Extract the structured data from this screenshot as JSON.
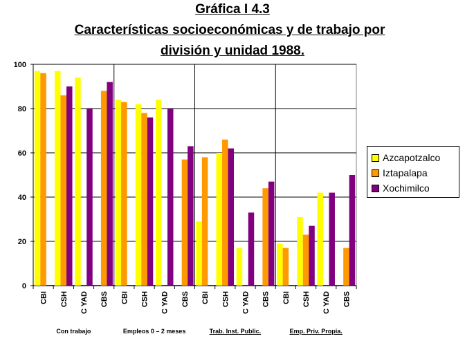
{
  "title": {
    "line1": "Gráfica I 4.3",
    "line2": "Características socioeconómicas y de trabajo por",
    "line3": "división y unidad 1988."
  },
  "colors": {
    "Azcapotzalco": "#ffff00",
    "Iztapalapa": "#ff9900",
    "Xochimilco": "#800080",
    "grid": "#000000",
    "plot_border": "#808080"
  },
  "chart_data": {
    "type": "bar",
    "ylim": [
      0,
      100
    ],
    "yticks": [
      0,
      20,
      40,
      60,
      80,
      100
    ],
    "grid": "horizontal",
    "legend_position": "right",
    "groups": [
      {
        "label": "Con trabajo",
        "categories": [
          "CBI",
          "CSH",
          "CYAD",
          "CBS"
        ]
      },
      {
        "label": "Empleos 0 – 2 meses",
        "categories": [
          "CBI",
          "CSH",
          "CYAD",
          "CBS"
        ]
      },
      {
        "label": "Trab. Inst. Public.",
        "categories": [
          "CBI",
          "CSH",
          "CYAD",
          "CBS"
        ]
      },
      {
        "label": "Emp. Priv. Propia.",
        "categories": [
          "CBI",
          "CSH",
          "CYAD",
          "CBS"
        ]
      }
    ],
    "categories": [
      "CBI",
      "CSH",
      "CYAD",
      "CBS",
      "CBI",
      "CSH",
      "CYAD",
      "CBS",
      "CBI",
      "CSH",
      "CYAD",
      "CBS",
      "CBI",
      "CSH",
      "CYAD",
      "CBS"
    ],
    "category_labels": [
      "CBI",
      "CSH",
      "C YAD",
      "CBS",
      "CBI",
      "CSH",
      "C YAD",
      "CBS",
      "CBI",
      "CSH",
      "C YAD",
      "CBS",
      "CBI",
      "CSH",
      "C YAD",
      "CBS"
    ],
    "series": [
      {
        "name": "Azcapotzalco",
        "values": [
          97,
          97,
          94,
          null,
          84,
          82,
          84,
          null,
          29,
          60,
          17,
          null,
          19,
          31,
          42,
          null
        ]
      },
      {
        "name": "Iztapalapa",
        "values": [
          96,
          86,
          null,
          88,
          83,
          78,
          null,
          57,
          58,
          66,
          null,
          44,
          17,
          23,
          null,
          17
        ]
      },
      {
        "name": "Xochimilco",
        "values": [
          null,
          90,
          80,
          92,
          null,
          76,
          80,
          63,
          null,
          62,
          33,
          47,
          null,
          27,
          42,
          50
        ]
      }
    ]
  },
  "legend": {
    "items": [
      "Azcapotzalco",
      "Iztapalapa",
      "Xochimilco"
    ]
  }
}
